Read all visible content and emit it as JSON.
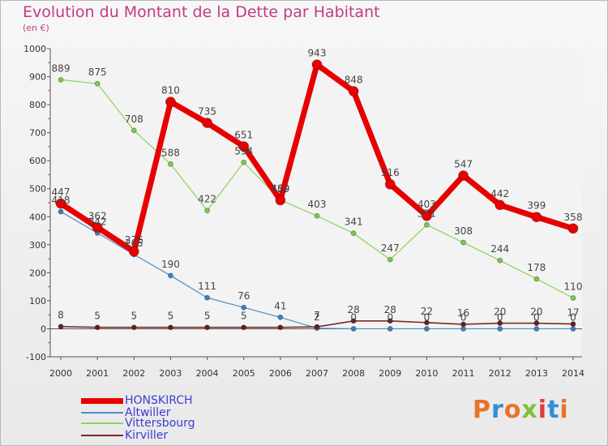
{
  "header": {
    "title": "Evolution du Montant de la Dette par Habitant",
    "subtitle": "(en €)"
  },
  "logo": {
    "text": "Proxiti",
    "colors": [
      "#e8732a",
      "#2f8fd8",
      "#e8732a",
      "#7fbf3f",
      "#e23c3c",
      "#2f8fd8",
      "#e8732a"
    ]
  },
  "chart_data": {
    "type": "line",
    "x": [
      "2000",
      "2001",
      "2002",
      "2003",
      "2004",
      "2005",
      "2006",
      "2007",
      "2008",
      "2009",
      "2010",
      "2011",
      "2012",
      "2013",
      "2014"
    ],
    "ylim": [
      -100,
      1000
    ],
    "yticks": [
      -100,
      0,
      100,
      200,
      300,
      400,
      500,
      600,
      700,
      800,
      900,
      1000
    ],
    "grid": false,
    "legend_position": "bottom-left",
    "series": [
      {
        "name": "Altwiller",
        "color": "#4f8fc7",
        "marker": "#3f7fbf",
        "width": 1.2,
        "radius": 3,
        "values": [
          418,
          342,
          265,
          190,
          111,
          76,
          41,
          2,
          0,
          0,
          0,
          0,
          0,
          0,
          0
        ],
        "labels": [
          "418",
          "342",
          "265",
          "190",
          "111",
          "76",
          "41",
          "2",
          "0",
          "0",
          "0",
          "0",
          "0",
          "0",
          "0"
        ]
      },
      {
        "name": "Kirviller",
        "color": "#7a2a2a",
        "marker": "#6a1f1f",
        "width": 1.6,
        "radius": 3,
        "values": [
          8,
          5,
          5,
          5,
          5,
          5,
          5,
          7,
          28,
          28,
          22,
          16,
          20,
          20,
          17
        ],
        "labels": [
          "8",
          "5",
          "5",
          "5",
          "5",
          "5",
          "",
          "7",
          "28",
          "28",
          "22",
          "16",
          "20",
          "20",
          "17"
        ]
      },
      {
        "name": "Vittersbourg",
        "color": "#8ad45a",
        "marker": "#7cc94a",
        "width": 1.2,
        "radius": 3,
        "values": [
          889,
          875,
          708,
          588,
          422,
          594,
          460,
          403,
          341,
          247,
          371,
          308,
          244,
          178,
          110
        ],
        "labels": [
          "889",
          "875",
          "708",
          "588",
          "422",
          "594",
          "460",
          "403",
          "341",
          "247",
          "371",
          "308",
          "244",
          "178",
          "110"
        ]
      },
      {
        "name": "HONSKIRCH",
        "color": "#e80000",
        "marker": "#e80000",
        "width": 7,
        "radius": 6,
        "values": [
          447,
          362,
          276,
          810,
          735,
          651,
          459,
          943,
          848,
          516,
          403,
          547,
          442,
          399,
          358
        ],
        "labels": [
          "447",
          "362",
          "276",
          "810",
          "735",
          "651",
          "459",
          "943",
          "848",
          "516",
          "403",
          "547",
          "442",
          "399",
          "358"
        ]
      }
    ]
  },
  "legend": [
    {
      "name": "HONSKIRCH",
      "color": "#e80000",
      "thickness": 7
    },
    {
      "name": "Altwiller",
      "color": "#4f8fc7",
      "thickness": 2
    },
    {
      "name": "Vittersbourg",
      "color": "#8ad45a",
      "thickness": 2
    },
    {
      "name": "Kirviller",
      "color": "#7a2a2a",
      "thickness": 2
    }
  ]
}
